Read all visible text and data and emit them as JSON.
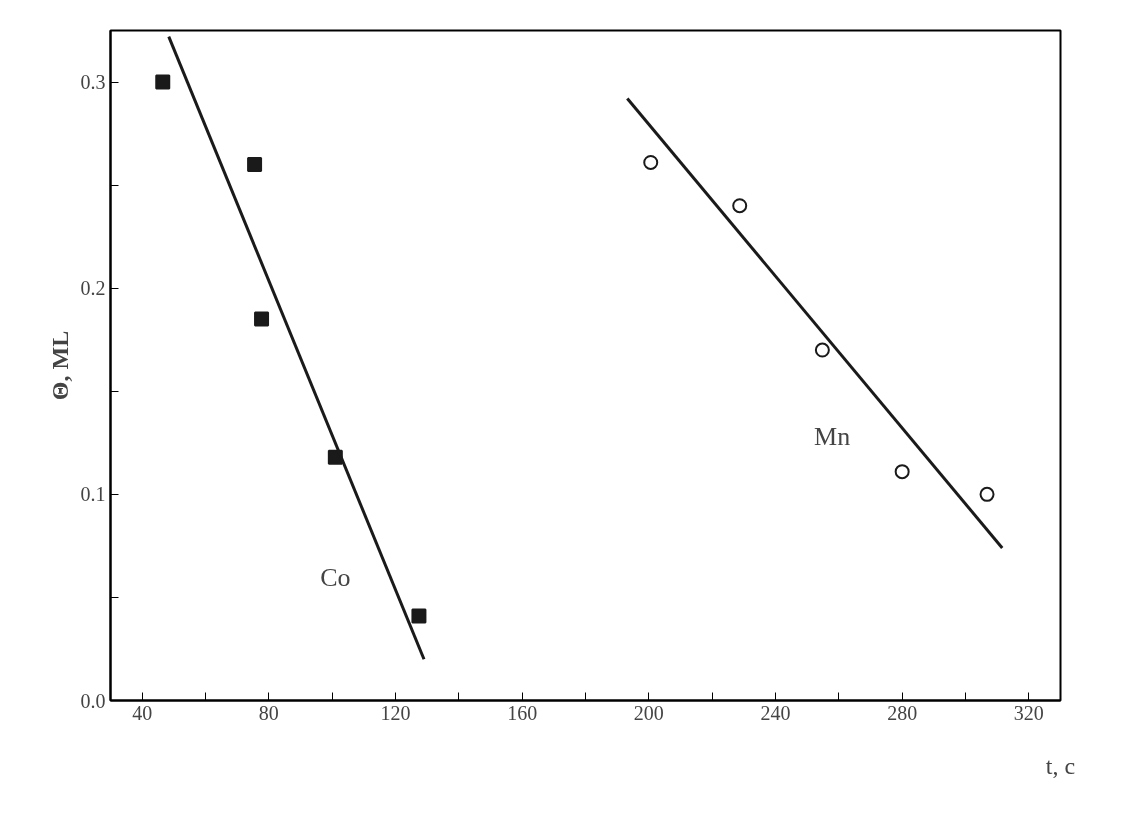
{
  "chart_data": {
    "type": "scatter",
    "xlabel": "t, c",
    "ylabel": "Θ, ML",
    "xlim": [
      30,
      330
    ],
    "ylim": [
      0,
      0.325
    ],
    "xticks": [
      40,
      {
        "value": 60,
        "label": null
      },
      80,
      {
        "value": 100,
        "label": null
      },
      120,
      {
        "value": 140,
        "label": null
      },
      160,
      {
        "value": 180,
        "label": null
      },
      200,
      {
        "value": 220,
        "label": null
      },
      240,
      {
        "value": 260,
        "label": null
      },
      280,
      {
        "value": 300,
        "label": null
      },
      320
    ],
    "yticks": [
      {
        "value": 0,
        "label": "0.0"
      },
      {
        "value": 0.05,
        "label": null
      },
      0.1,
      {
        "value": 0.15,
        "label": null
      },
      0.2,
      {
        "value": 0.25,
        "label": null
      },
      0.3
    ],
    "grid": false,
    "series": [
      {
        "name": "Co",
        "marker": "square",
        "color": "#1a1a1a",
        "x": [
          46.5,
          75.5,
          77.7,
          101,
          127.4
        ],
        "values": [
          0.3,
          0.26,
          0.185,
          0.118,
          0.041
        ]
      },
      {
        "type": "line",
        "color": "#1a1a1a",
        "x": [
          48.4,
          129
        ],
        "values": [
          0.322,
          0.02
        ]
      },
      {
        "name": "Mn",
        "marker": "circle",
        "color": "#1a1a1a",
        "x": [
          200.6,
          228.7,
          254.8,
          280,
          306.8
        ],
        "values": [
          0.261,
          0.24,
          0.17,
          0.111,
          0.1
        ]
      },
      {
        "type": "line",
        "color": "#1a1a1a",
        "x": [
          193.2,
          311.6
        ],
        "values": [
          0.292,
          0.074
        ]
      }
    ]
  }
}
